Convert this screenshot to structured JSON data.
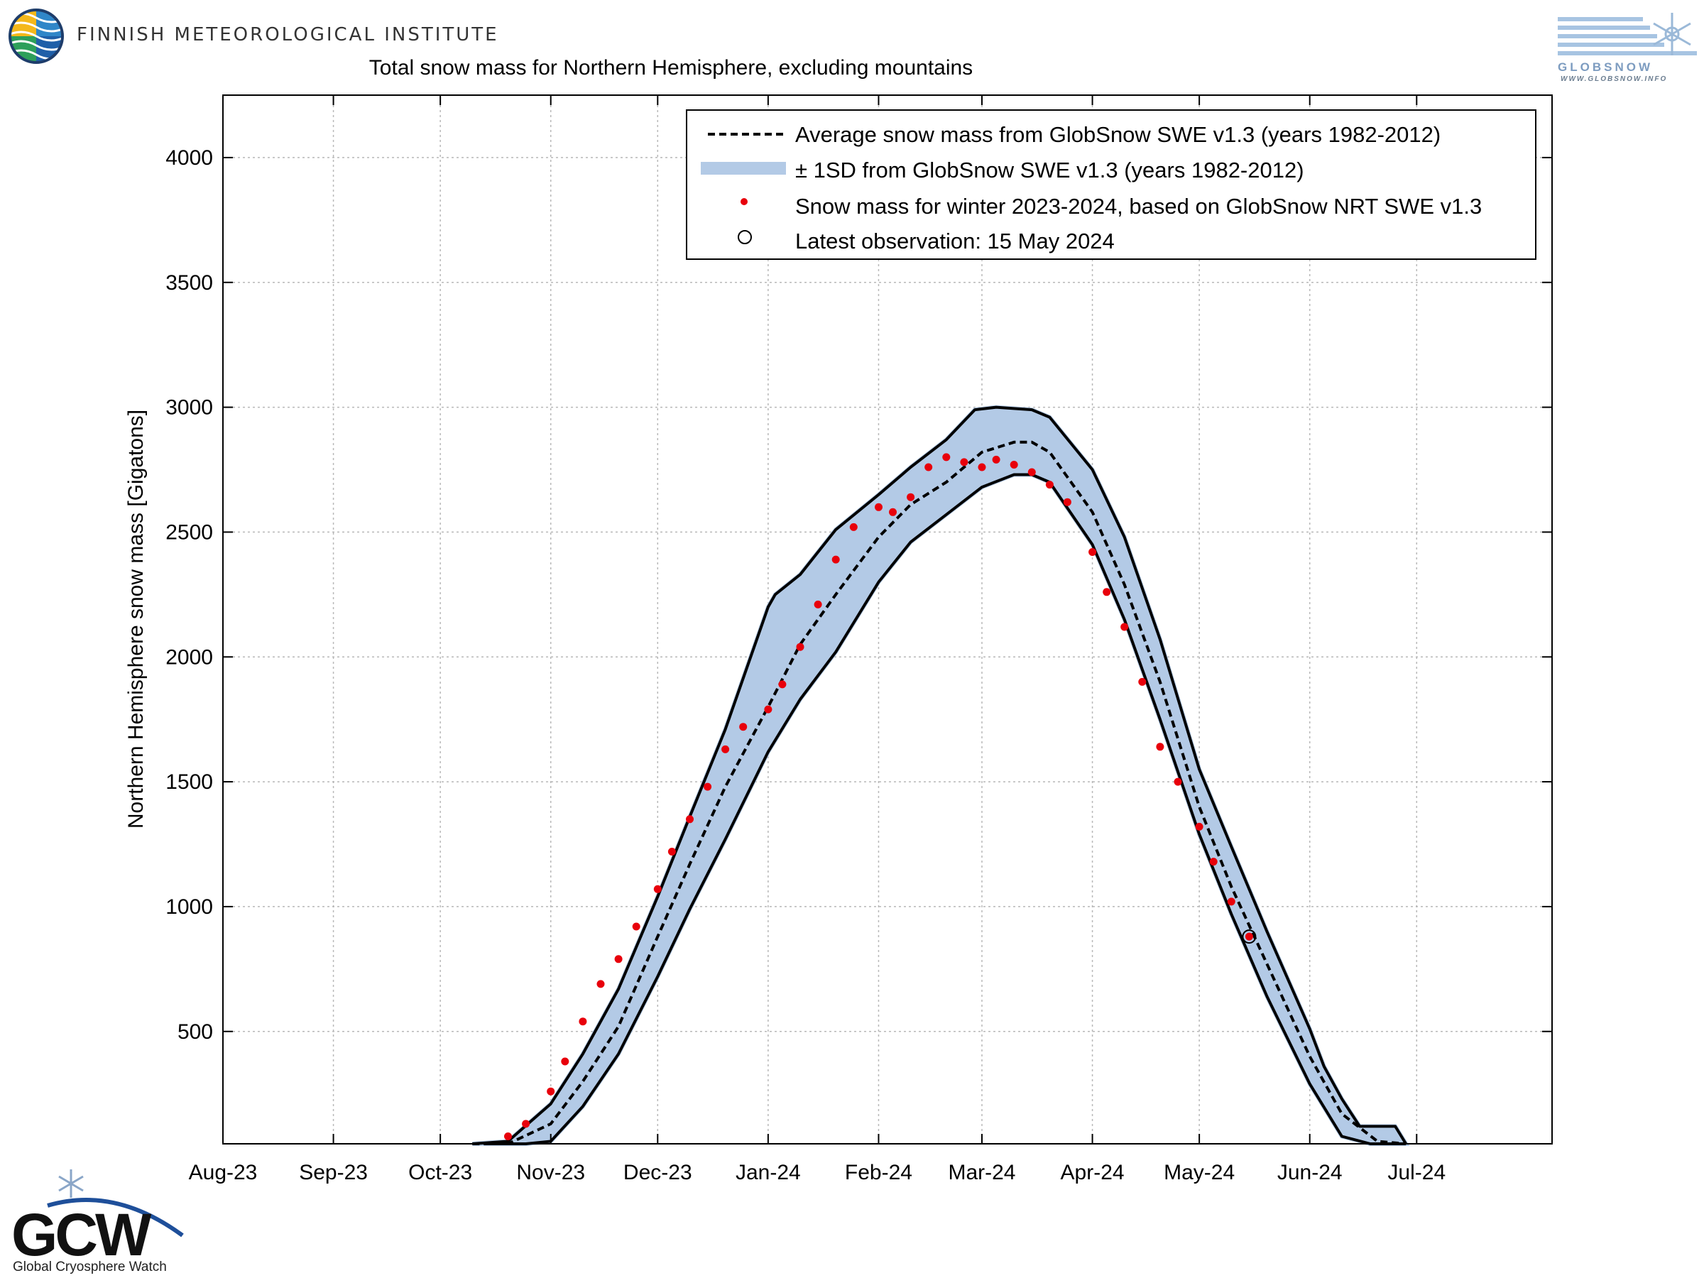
{
  "header": {
    "institute": "FINNISH METEOROLOGICAL INSTITUTE"
  },
  "logos": {
    "globsnow": {
      "name": "GLOBSNOW",
      "url": "WWW.GLOBSNOW.INFO"
    },
    "gcw": {
      "name": "GCW",
      "subtitle": "Global Cryosphere Watch"
    }
  },
  "colors": {
    "band": "#b3cae6",
    "band_edge": "#000000",
    "average": "#000000",
    "observations": "#e8000b"
  },
  "chart_data": {
    "type": "line",
    "title": "Total snow mass for Northern Hemisphere, excluding mountains",
    "xlabel": "",
    "ylabel": "Northern Hemisphere snow mass [Gigatons]",
    "x_ticks": [
      "Aug-23",
      "Sep-23",
      "Oct-23",
      "Nov-23",
      "Dec-23",
      "Jan-24",
      "Feb-24",
      "Mar-24",
      "Apr-24",
      "May-24",
      "Jun-24",
      "Jul-24"
    ],
    "x_tick_dates": [
      "2023-08-01",
      "2023-09-01",
      "2023-10-01",
      "2023-11-01",
      "2023-12-01",
      "2024-01-01",
      "2024-02-01",
      "2024-03-01",
      "2024-04-01",
      "2024-05-01",
      "2024-06-01",
      "2024-07-01"
    ],
    "xlim": [
      "2023-08-01",
      "2024-08-08"
    ],
    "ylim": [
      50,
      4250
    ],
    "y_ticks": [
      500,
      1000,
      1500,
      2000,
      2500,
      3000,
      3500,
      4000
    ],
    "grid": true,
    "legend_position": "top-right",
    "legend": [
      "Average snow mass from GlobSnow SWE v1.3 (years 1982-2012)",
      "± 1SD from GlobSnow SWE v1.3 (years 1982-2012)",
      "Snow mass for winter 2023-2024, based on GlobSnow NRT SWE v1.3",
      "Latest observation: 15 May 2024"
    ],
    "series": [
      {
        "kind": "average",
        "style": "dashed",
        "points": [
          [
            "2023-10-10",
            0
          ],
          [
            "2023-10-20",
            30
          ],
          [
            "2023-11-01",
            130
          ],
          [
            "2023-11-10",
            300
          ],
          [
            "2023-11-20",
            520
          ],
          [
            "2023-12-01",
            880
          ],
          [
            "2023-12-10",
            1170
          ],
          [
            "2023-12-20",
            1480
          ],
          [
            "2024-01-01",
            1800
          ],
          [
            "2024-01-10",
            2050
          ],
          [
            "2024-01-20",
            2250
          ],
          [
            "2024-02-01",
            2480
          ],
          [
            "2024-02-10",
            2610
          ],
          [
            "2024-02-20",
            2700
          ],
          [
            "2024-03-01",
            2820
          ],
          [
            "2024-03-10",
            2860
          ],
          [
            "2024-03-15",
            2860
          ],
          [
            "2024-03-20",
            2820
          ],
          [
            "2024-04-01",
            2580
          ],
          [
            "2024-04-10",
            2290
          ],
          [
            "2024-04-20",
            1900
          ],
          [
            "2024-05-01",
            1400
          ],
          [
            "2024-05-10",
            1080
          ],
          [
            "2024-05-20",
            770
          ],
          [
            "2024-06-01",
            400
          ],
          [
            "2024-06-10",
            170
          ],
          [
            "2024-06-20",
            60
          ],
          [
            "2024-06-28",
            40
          ]
        ]
      },
      {
        "kind": "upper",
        "style": "solid",
        "points": [
          [
            "2023-10-10",
            10
          ],
          [
            "2023-10-20",
            60
          ],
          [
            "2023-11-01",
            210
          ],
          [
            "2023-11-10",
            410
          ],
          [
            "2023-11-20",
            670
          ],
          [
            "2023-12-01",
            1040
          ],
          [
            "2023-12-10",
            1360
          ],
          [
            "2023-12-20",
            1710
          ],
          [
            "2024-01-01",
            2200
          ],
          [
            "2024-01-03",
            2250
          ],
          [
            "2024-01-10",
            2330
          ],
          [
            "2024-01-20",
            2510
          ],
          [
            "2024-02-01",
            2650
          ],
          [
            "2024-02-10",
            2760
          ],
          [
            "2024-02-20",
            2870
          ],
          [
            "2024-02-28",
            2990
          ],
          [
            "2024-03-05",
            3000
          ],
          [
            "2024-03-15",
            2990
          ],
          [
            "2024-03-20",
            2960
          ],
          [
            "2024-04-01",
            2750
          ],
          [
            "2024-04-10",
            2480
          ],
          [
            "2024-04-20",
            2070
          ],
          [
            "2024-05-01",
            1550
          ],
          [
            "2024-05-10",
            1240
          ],
          [
            "2024-05-20",
            900
          ],
          [
            "2024-06-01",
            510
          ],
          [
            "2024-06-05",
            360
          ],
          [
            "2024-06-10",
            230
          ],
          [
            "2024-06-15",
            120
          ],
          [
            "2024-06-20",
            120
          ],
          [
            "2024-06-25",
            120
          ],
          [
            "2024-06-28",
            40
          ]
        ]
      },
      {
        "kind": "lower",
        "style": "solid",
        "points": [
          [
            "2023-10-15",
            0
          ],
          [
            "2023-10-25",
            20
          ],
          [
            "2023-11-01",
            60
          ],
          [
            "2023-11-10",
            200
          ],
          [
            "2023-11-20",
            410
          ],
          [
            "2023-12-01",
            720
          ],
          [
            "2023-12-10",
            990
          ],
          [
            "2023-12-20",
            1270
          ],
          [
            "2024-01-01",
            1620
          ],
          [
            "2024-01-10",
            1830
          ],
          [
            "2024-01-20",
            2020
          ],
          [
            "2024-02-01",
            2300
          ],
          [
            "2024-02-10",
            2460
          ],
          [
            "2024-02-20",
            2570
          ],
          [
            "2024-03-01",
            2680
          ],
          [
            "2024-03-10",
            2730
          ],
          [
            "2024-03-15",
            2730
          ],
          [
            "2024-03-20",
            2700
          ],
          [
            "2024-04-01",
            2450
          ],
          [
            "2024-04-10",
            2150
          ],
          [
            "2024-04-20",
            1750
          ],
          [
            "2024-05-01",
            1290
          ],
          [
            "2024-05-10",
            970
          ],
          [
            "2024-05-20",
            640
          ],
          [
            "2024-06-01",
            290
          ],
          [
            "2024-06-10",
            80
          ],
          [
            "2024-06-18",
            10
          ],
          [
            "2024-06-28",
            0
          ]
        ]
      }
    ],
    "observations": {
      "name": "Snow mass for winter 2023-2024, based on GlobSnow NRT SWE v1.3",
      "points": [
        [
          "2023-10-20",
          80
        ],
        [
          "2023-10-25",
          130
        ],
        [
          "2023-11-01",
          260
        ],
        [
          "2023-11-05",
          380
        ],
        [
          "2023-11-10",
          540
        ],
        [
          "2023-11-15",
          690
        ],
        [
          "2023-11-20",
          790
        ],
        [
          "2023-11-25",
          920
        ],
        [
          "2023-12-01",
          1070
        ],
        [
          "2023-12-05",
          1220
        ],
        [
          "2023-12-10",
          1350
        ],
        [
          "2023-12-15",
          1480
        ],
        [
          "2023-12-20",
          1630
        ],
        [
          "2023-12-25",
          1720
        ],
        [
          "2024-01-01",
          1790
        ],
        [
          "2024-01-05",
          1890
        ],
        [
          "2024-01-10",
          2040
        ],
        [
          "2024-01-15",
          2210
        ],
        [
          "2024-01-20",
          2390
        ],
        [
          "2024-01-25",
          2520
        ],
        [
          "2024-02-01",
          2600
        ],
        [
          "2024-02-05",
          2580
        ],
        [
          "2024-02-10",
          2640
        ],
        [
          "2024-02-15",
          2760
        ],
        [
          "2024-02-20",
          2800
        ],
        [
          "2024-02-25",
          2780
        ],
        [
          "2024-03-01",
          2760
        ],
        [
          "2024-03-05",
          2790
        ],
        [
          "2024-03-10",
          2770
        ],
        [
          "2024-03-15",
          2740
        ],
        [
          "2024-03-20",
          2690
        ],
        [
          "2024-03-25",
          2620
        ],
        [
          "2024-04-01",
          2420
        ],
        [
          "2024-04-05",
          2260
        ],
        [
          "2024-04-10",
          2120
        ],
        [
          "2024-04-15",
          1900
        ],
        [
          "2024-04-20",
          1640
        ],
        [
          "2024-04-25",
          1500
        ],
        [
          "2024-05-01",
          1320
        ],
        [
          "2024-05-05",
          1180
        ],
        [
          "2024-05-10",
          1020
        ],
        [
          "2024-05-15",
          880
        ]
      ]
    },
    "latest_observation": {
      "date": "2024-05-15",
      "value": 880
    }
  }
}
